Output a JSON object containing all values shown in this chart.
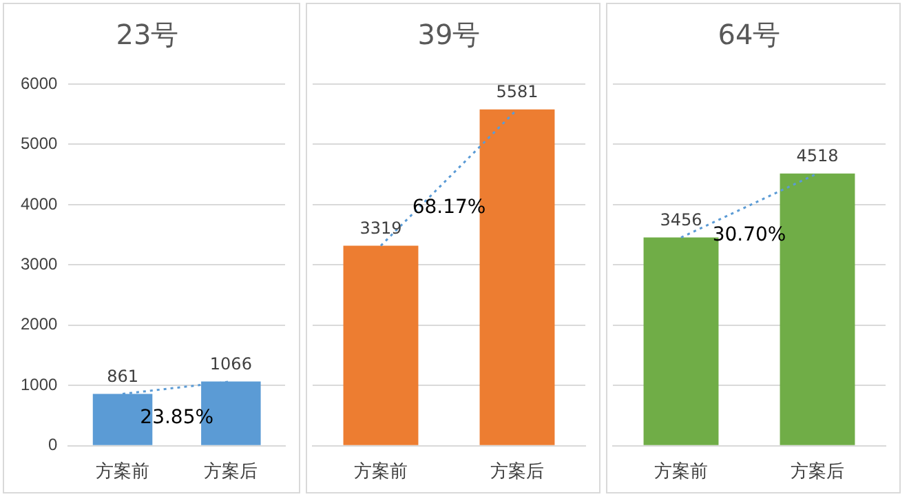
{
  "chart_data": [
    {
      "type": "bar",
      "title": "23号",
      "categories": [
        "方案前",
        "方案后"
      ],
      "series": [
        {
          "color": "#5b9bd5",
          "values": [
            861,
            1066
          ],
          "value_labels": [
            "861",
            "1066"
          ]
        },
        {
          "type": "line",
          "color": "#5b9bd5",
          "values": [
            861,
            1066
          ],
          "line_style": "dotted",
          "marker": "none"
        }
      ],
      "ylim": [
        0,
        6000
      ],
      "yticks": [
        0,
        1000,
        2000,
        3000,
        4000,
        5000,
        6000
      ],
      "grid": "y",
      "annotations": [
        "23.85%"
      ]
    },
    {
      "type": "bar",
      "title": "39号",
      "categories": [
        "方案前",
        "方案后"
      ],
      "series": [
        {
          "color": "#ed7d31",
          "values": [
            3319,
            5581
          ],
          "value_labels": [
            "3319",
            "5581"
          ]
        },
        {
          "type": "line",
          "color": "#5b9bd5",
          "values": [
            3319,
            5581
          ],
          "line_style": "dotted",
          "marker": "none"
        }
      ],
      "ylim": [
        0,
        6000
      ],
      "yticks": [
        0,
        1000,
        2000,
        3000,
        4000,
        5000,
        6000
      ],
      "grid": "y",
      "tick_labels": "x",
      "annotations": [
        "68.17%"
      ]
    },
    {
      "type": "bar",
      "title": "64号",
      "categories": [
        "方案前",
        "方案后"
      ],
      "series": [
        {
          "color": "#70ad47",
          "values": [
            3456,
            4518
          ],
          "value_labels": [
            "3456",
            "4518"
          ]
        },
        {
          "type": "line",
          "color": "#5b9bd5",
          "values": [
            3456,
            4518
          ],
          "line_style": "dotted",
          "marker": "none"
        }
      ],
      "ylim": [
        0,
        6000
      ],
      "yticks": [
        0,
        1000,
        2000,
        3000,
        4000,
        5000,
        6000
      ],
      "grid": "y",
      "tick_labels": "x",
      "annotations": [
        "30.70%"
      ]
    }
  ]
}
